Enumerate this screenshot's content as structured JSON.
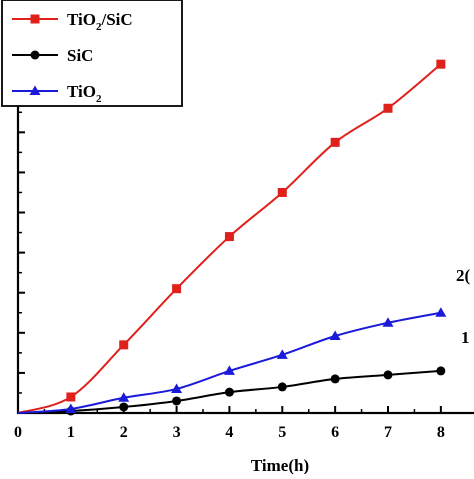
{
  "chart_data": {
    "type": "line",
    "xlabel": "Time(h)",
    "ylabel": "",
    "xlim": [
      0,
      8.4
    ],
    "ylim": [
      0,
      10.3
    ],
    "x_ticks": [
      "0",
      "1",
      "2",
      "3",
      "4",
      "5",
      "6",
      "7",
      "8"
    ],
    "grid": false,
    "legend_position": "top-left",
    "series": [
      {
        "name": "TiO2/SiC",
        "legend_base": "TiO",
        "legend_sub": "2",
        "legend_tail": "/SiC",
        "color": "#e0201b",
        "marker": "square",
        "x": [
          0,
          1,
          2,
          3,
          4,
          5,
          6,
          7,
          8
        ],
        "y": [
          0,
          0.4,
          1.7,
          3.1,
          4.4,
          5.5,
          6.75,
          7.6,
          8.7
        ]
      },
      {
        "name": "SiC",
        "legend_base": "SiC",
        "legend_sub": "",
        "legend_tail": "",
        "color": "#000000",
        "marker": "circle",
        "x": [
          0,
          1,
          2,
          3,
          4,
          5,
          6,
          7,
          8
        ],
        "y": [
          0,
          0.05,
          0.15,
          0.3,
          0.52,
          0.65,
          0.85,
          0.95,
          1.05
        ]
      },
      {
        "name": "TiO2",
        "legend_base": "TiO",
        "legend_sub": "2",
        "legend_tail": "",
        "color": "#1a1adb",
        "marker": "triangle",
        "x": [
          0,
          1,
          2,
          3,
          4,
          5,
          6,
          7,
          8
        ],
        "y": [
          0,
          0.1,
          0.38,
          0.6,
          1.05,
          1.45,
          1.92,
          2.25,
          2.5
        ]
      }
    ],
    "annotations": [
      "2(",
      "1"
    ]
  }
}
